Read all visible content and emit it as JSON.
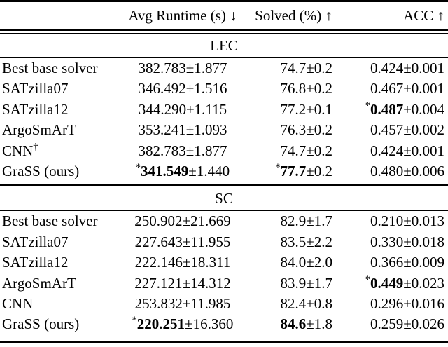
{
  "header": {
    "col_runtime": "Avg Runtime (s) ↓",
    "col_solved": "Solved (%) ↑",
    "col_acc": "ACC ↑"
  },
  "markers": {
    "best": "*",
    "dagger": "†"
  },
  "colors": {
    "text": "#000000",
    "background": "#ffffff",
    "rule": "#000000"
  },
  "sections": [
    {
      "label": "LEC",
      "rows": [
        {
          "solver": "Best base solver",
          "solver_sup": "",
          "runtime": {
            "star": false,
            "main": "382.783",
            "bold": false,
            "pm": "±1.877"
          },
          "solved": {
            "star": false,
            "main": "74.7",
            "bold": false,
            "pm": "±0.2"
          },
          "acc": {
            "star": false,
            "main": "0.424",
            "bold": false,
            "pm": "±0.001"
          }
        },
        {
          "solver": "SATzilla07",
          "solver_sup": "",
          "runtime": {
            "star": false,
            "main": "346.492",
            "bold": false,
            "pm": "±1.516"
          },
          "solved": {
            "star": false,
            "main": "76.8",
            "bold": false,
            "pm": "±0.2"
          },
          "acc": {
            "star": false,
            "main": "0.467",
            "bold": false,
            "pm": "±0.001"
          }
        },
        {
          "solver": "SATzilla12",
          "solver_sup": "",
          "runtime": {
            "star": false,
            "main": "344.290",
            "bold": false,
            "pm": "±1.115"
          },
          "solved": {
            "star": false,
            "main": "77.2",
            "bold": false,
            "pm": "±0.1"
          },
          "acc": {
            "star": true,
            "main": "0.487",
            "bold": true,
            "pm": "±0.004"
          }
        },
        {
          "solver": "ArgoSmArT",
          "solver_sup": "",
          "runtime": {
            "star": false,
            "main": "353.241",
            "bold": false,
            "pm": "±1.093"
          },
          "solved": {
            "star": false,
            "main": "76.3",
            "bold": false,
            "pm": "±0.2"
          },
          "acc": {
            "star": false,
            "main": "0.457",
            "bold": false,
            "pm": "±0.002"
          }
        },
        {
          "solver": "CNN",
          "solver_sup": "†",
          "runtime": {
            "star": false,
            "main": "382.783",
            "bold": false,
            "pm": "±1.877"
          },
          "solved": {
            "star": false,
            "main": "74.7",
            "bold": false,
            "pm": "±0.2"
          },
          "acc": {
            "star": false,
            "main": "0.424",
            "bold": false,
            "pm": "±0.001"
          }
        },
        {
          "solver": "GraSS (ours)",
          "solver_sup": "",
          "runtime": {
            "star": true,
            "main": "341.549",
            "bold": true,
            "pm": "±1.440"
          },
          "solved": {
            "star": true,
            "main": "77.7",
            "bold": true,
            "pm": "±0.2"
          },
          "acc": {
            "star": false,
            "main": "0.480",
            "bold": false,
            "pm": "±0.006"
          }
        }
      ]
    },
    {
      "label": "SC",
      "rows": [
        {
          "solver": "Best base solver",
          "solver_sup": "",
          "runtime": {
            "star": false,
            "main": "250.902",
            "bold": false,
            "pm": "±21.669"
          },
          "solved": {
            "star": false,
            "main": "82.9",
            "bold": false,
            "pm": "±1.7"
          },
          "acc": {
            "star": false,
            "main": "0.210",
            "bold": false,
            "pm": "±0.013"
          }
        },
        {
          "solver": "SATzilla07",
          "solver_sup": "",
          "runtime": {
            "star": false,
            "main": "227.643",
            "bold": false,
            "pm": "±11.955"
          },
          "solved": {
            "star": false,
            "main": "83.5",
            "bold": false,
            "pm": "±2.2"
          },
          "acc": {
            "star": false,
            "main": "0.330",
            "bold": false,
            "pm": "±0.018"
          }
        },
        {
          "solver": "SATzilla12",
          "solver_sup": "",
          "runtime": {
            "star": false,
            "main": "222.146",
            "bold": false,
            "pm": "±18.311"
          },
          "solved": {
            "star": false,
            "main": "84.0",
            "bold": false,
            "pm": "±2.0"
          },
          "acc": {
            "star": false,
            "main": "0.366",
            "bold": false,
            "pm": "±0.009"
          }
        },
        {
          "solver": "ArgoSmArT",
          "solver_sup": "",
          "runtime": {
            "star": false,
            "main": "227.121",
            "bold": false,
            "pm": "±14.312"
          },
          "solved": {
            "star": false,
            "main": "83.9",
            "bold": false,
            "pm": "±1.7"
          },
          "acc": {
            "star": true,
            "main": "0.449",
            "bold": true,
            "pm": "±0.023"
          }
        },
        {
          "solver": "CNN",
          "solver_sup": "",
          "runtime": {
            "star": false,
            "main": "253.832",
            "bold": false,
            "pm": "±11.985"
          },
          "solved": {
            "star": false,
            "main": "82.4",
            "bold": false,
            "pm": "±0.8"
          },
          "acc": {
            "star": false,
            "main": "0.296",
            "bold": false,
            "pm": "±0.016"
          }
        },
        {
          "solver": "GraSS (ours)",
          "solver_sup": "",
          "runtime": {
            "star": true,
            "main": "220.251",
            "bold": true,
            "pm": "±16.360"
          },
          "solved": {
            "star": false,
            "main": "84.6",
            "bold": true,
            "pm": "±1.8"
          },
          "acc": {
            "star": false,
            "main": "0.259",
            "bold": false,
            "pm": "±0.026"
          }
        }
      ]
    }
  ]
}
